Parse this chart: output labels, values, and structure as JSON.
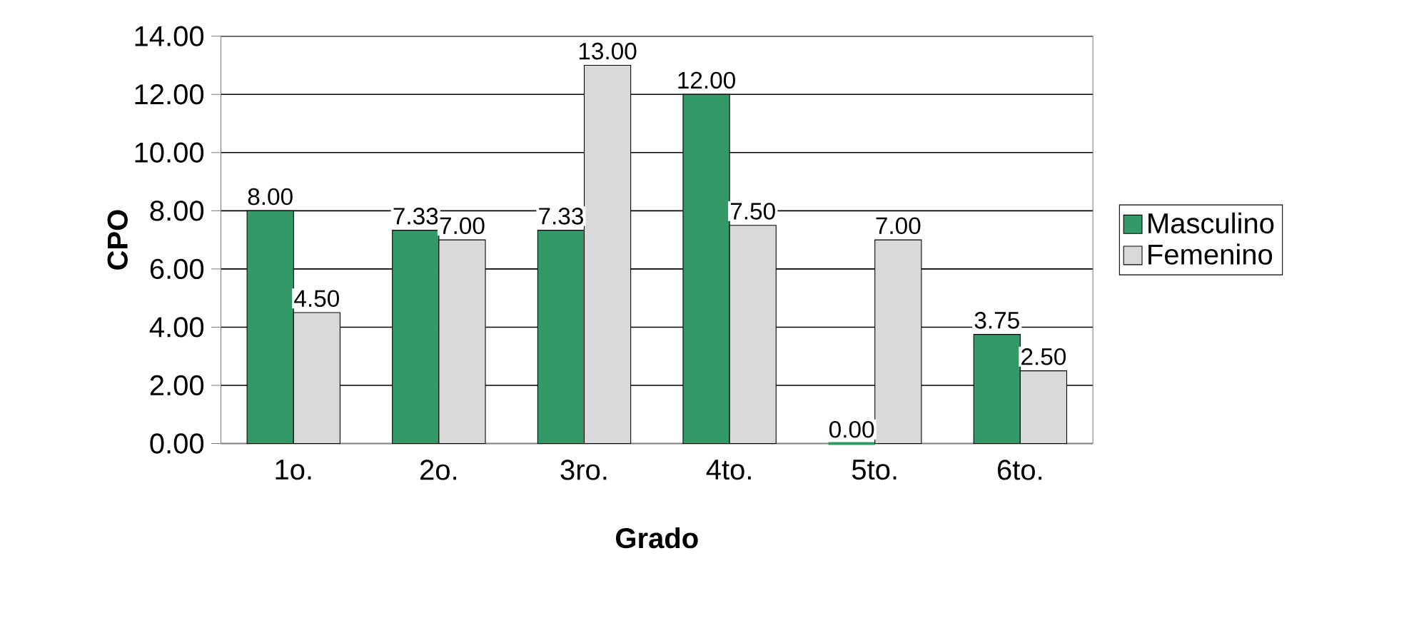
{
  "chart_data": {
    "type": "bar",
    "xlabel": "Grado",
    "ylabel": "CPO",
    "categories": [
      "1o.",
      "2o.",
      "3ro.",
      "4to.",
      "5to.",
      "6to."
    ],
    "series": [
      {
        "name": "Masculino",
        "color": "#339966",
        "values": [
          8.0,
          7.33,
          7.33,
          12.0,
          0.0,
          3.75
        ],
        "value_labels": [
          "8.00",
          "7.33",
          "7.33",
          "12.00",
          "0.00",
          "3.75"
        ]
      },
      {
        "name": "Femenino",
        "color": "#d9d9d9",
        "values": [
          4.5,
          7.0,
          13.0,
          7.5,
          7.0,
          2.5
        ],
        "value_labels": [
          "4.50",
          "7.00",
          "13.00",
          "7.50",
          "7.00",
          "2.50"
        ]
      }
    ],
    "ylim": [
      0,
      14
    ],
    "yticks": [
      {
        "value": 0,
        "label": "0.00"
      },
      {
        "value": 2,
        "label": "2.00"
      },
      {
        "value": 4,
        "label": "4.00"
      },
      {
        "value": 6,
        "label": "6.00"
      },
      {
        "value": 8,
        "label": "8.00"
      },
      {
        "value": 10,
        "label": "10.00"
      },
      {
        "value": 12,
        "label": "12.00"
      },
      {
        "value": 14,
        "label": "14.00"
      }
    ],
    "grid": "y",
    "legend": "right"
  }
}
